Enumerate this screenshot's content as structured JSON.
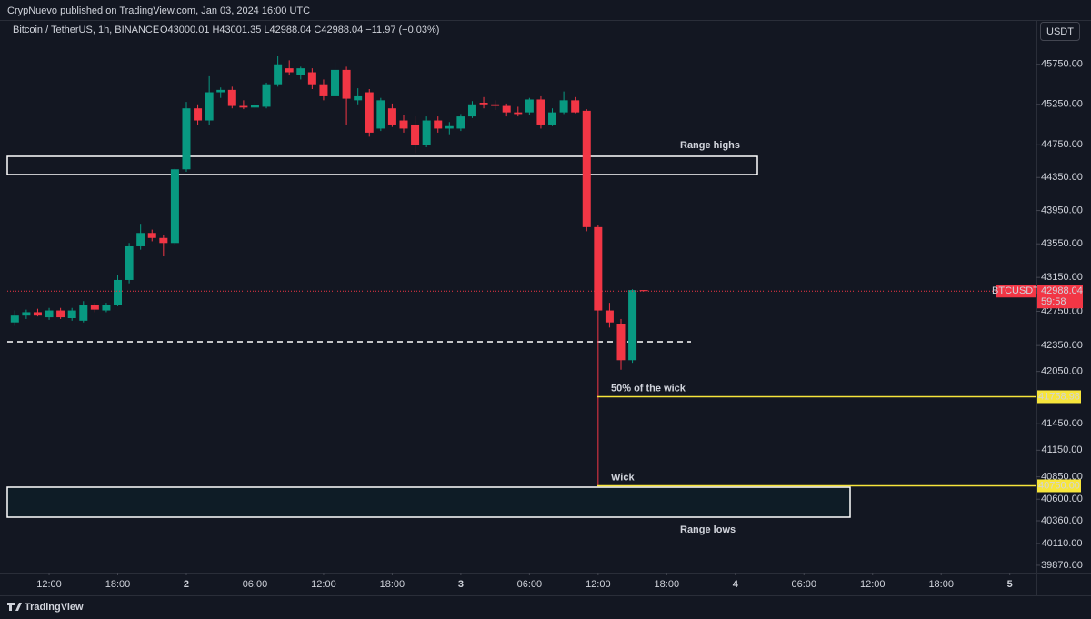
{
  "header": "CrypNuevo published on TradingView.com, Jan 03, 2024 16:00 UTC",
  "footer": "TradingView",
  "chart_data": {
    "type": "candlestick",
    "symbol": "Bitcoin / TetherUS, 1h, BINANCE",
    "ohlc_text": "O43000.01 H43001.35 L42988.04 C42988.04 −11.97 (−0.03%)",
    "currency": "USDT",
    "symbol_tag": "BTCUSDT",
    "countdown": "59:58",
    "up_color": "#089981",
    "down_color": "#f23645",
    "log_scale": true,
    "grid": false,
    "x": [
      9,
      10,
      11,
      12,
      13,
      14,
      15,
      16,
      17,
      18,
      19,
      20,
      21,
      22,
      23,
      24,
      25,
      26,
      27,
      28,
      29,
      30,
      31,
      32,
      33,
      34,
      35,
      36,
      37,
      38,
      39,
      40,
      41,
      42,
      43,
      44,
      45,
      46,
      47,
      48,
      49,
      50,
      51,
      52,
      53,
      54,
      55,
      56,
      57,
      58,
      59,
      60,
      61,
      62,
      63,
      64
    ],
    "open": [
      42620,
      42700,
      42740,
      42680,
      42760,
      42670,
      42640,
      42820,
      42760,
      42830,
      43120,
      43520,
      43680,
      43620,
      43560,
      44450,
      45200,
      45050,
      45400,
      45430,
      45230,
      45210,
      45220,
      45500,
      45700,
      45620,
      45650,
      45500,
      45350,
      45680,
      45300,
      45400,
      44950,
      45200,
      45050,
      45000,
      44750,
      45050,
      44950,
      44950,
      45100,
      45270,
      45250,
      45230,
      45150,
      45150,
      45310,
      45000,
      45150,
      45300,
      45170,
      43750,
      42760,
      42600,
      42180,
      43000.01
    ],
    "high": [
      42760,
      42770,
      42780,
      42790,
      42790,
      42790,
      42870,
      42850,
      42850,
      43180,
      43560,
      43790,
      43720,
      43650,
      44460,
      45280,
      45250,
      45600,
      45460,
      45470,
      45300,
      45300,
      45520,
      45850,
      45800,
      45720,
      45700,
      45560,
      45780,
      45720,
      45450,
      45440,
      45330,
      45260,
      45120,
      45100,
      45100,
      45100,
      45030,
      45130,
      45290,
      45340,
      45300,
      45260,
      45220,
      45330,
      45350,
      45200,
      45410,
      45340,
      45190,
      43770,
      42850,
      42660,
      43010,
      43001.35
    ],
    "low": [
      42580,
      42660,
      42690,
      42650,
      42660,
      42640,
      42620,
      42740,
      42740,
      42810,
      43080,
      43480,
      43580,
      43400,
      43540,
      44420,
      45000,
      45000,
      45330,
      45200,
      45190,
      45190,
      45200,
      45470,
      45610,
      45560,
      45440,
      45300,
      45330,
      45000,
      45250,
      44850,
      44920,
      44970,
      44900,
      44650,
      44720,
      44900,
      44880,
      44920,
      45080,
      45200,
      45180,
      45100,
      45100,
      45120,
      44950,
      44980,
      45130,
      45140,
      43700,
      40750,
      42560,
      42070,
      42150,
      42988.04
    ],
    "close": [
      42700,
      42740,
      42700,
      42760,
      42680,
      42760,
      42820,
      42770,
      42830,
      43120,
      43520,
      43680,
      43620,
      43560,
      44450,
      45200,
      45050,
      45400,
      45430,
      45230,
      45210,
      45240,
      45500,
      45750,
      45650,
      45700,
      45500,
      45350,
      45680,
      45320,
      45350,
      44900,
      45300,
      45000,
      44950,
      44750,
      45050,
      44950,
      44980,
      45100,
      45250,
      45250,
      45230,
      45150,
      45130,
      45310,
      45000,
      45150,
      45300,
      45150,
      43750,
      42760,
      42620,
      42180,
      43000,
      42988.04
    ],
    "xlim": [
      8.34,
      98.33
    ],
    "xticks": [
      {
        "value": 12,
        "label": "12:00"
      },
      {
        "value": 18,
        "label": "18:00"
      },
      {
        "value": 24,
        "label": "2"
      },
      {
        "value": 30,
        "label": "06:00"
      },
      {
        "value": 36,
        "label": "12:00"
      },
      {
        "value": 42,
        "label": "18:00"
      },
      {
        "value": 48,
        "label": "3"
      },
      {
        "value": 54,
        "label": "06:00"
      },
      {
        "value": 60,
        "label": "12:00"
      },
      {
        "value": 66,
        "label": "18:00"
      },
      {
        "value": 72,
        "label": "4"
      },
      {
        "value": 78,
        "label": "06:00"
      },
      {
        "value": 84,
        "label": "12:00"
      },
      {
        "value": 90,
        "label": "18:00"
      },
      {
        "value": 96,
        "label": "5"
      }
    ],
    "ylim": [
      39790,
      46310
    ],
    "yticks": [
      {
        "value": 45750,
        "label": "45750.00"
      },
      {
        "value": 45250,
        "label": "45250.00"
      },
      {
        "value": 44750,
        "label": "44750.00"
      },
      {
        "value": 44350,
        "label": "44350.00"
      },
      {
        "value": 43950,
        "label": "43950.00"
      },
      {
        "value": 43550,
        "label": "43550.00"
      },
      {
        "value": 43150,
        "label": "43150.00"
      },
      {
        "value": 42750,
        "label": "42750.00"
      },
      {
        "value": 42350,
        "label": "42350.00"
      },
      {
        "value": 42050,
        "label": "42050.00"
      },
      {
        "value": 41450,
        "label": "41450.00"
      },
      {
        "value": 41150,
        "label": "41150.00"
      },
      {
        "value": 40850,
        "label": "40850.00"
      },
      {
        "value": 40600,
        "label": "40600.00"
      },
      {
        "value": 40360,
        "label": "40360.00"
      },
      {
        "value": 40110,
        "label": "40110.00"
      },
      {
        "value": 39870,
        "label": "39870.00"
      }
    ],
    "levels": [
      {
        "name": "50% of the wick",
        "value": 41758.98,
        "label": "41758.98"
      },
      {
        "name": "Wick",
        "value": 40750,
        "label": "40750.00"
      }
    ],
    "annotations": [
      "Range highs",
      "Range lows"
    ]
  }
}
